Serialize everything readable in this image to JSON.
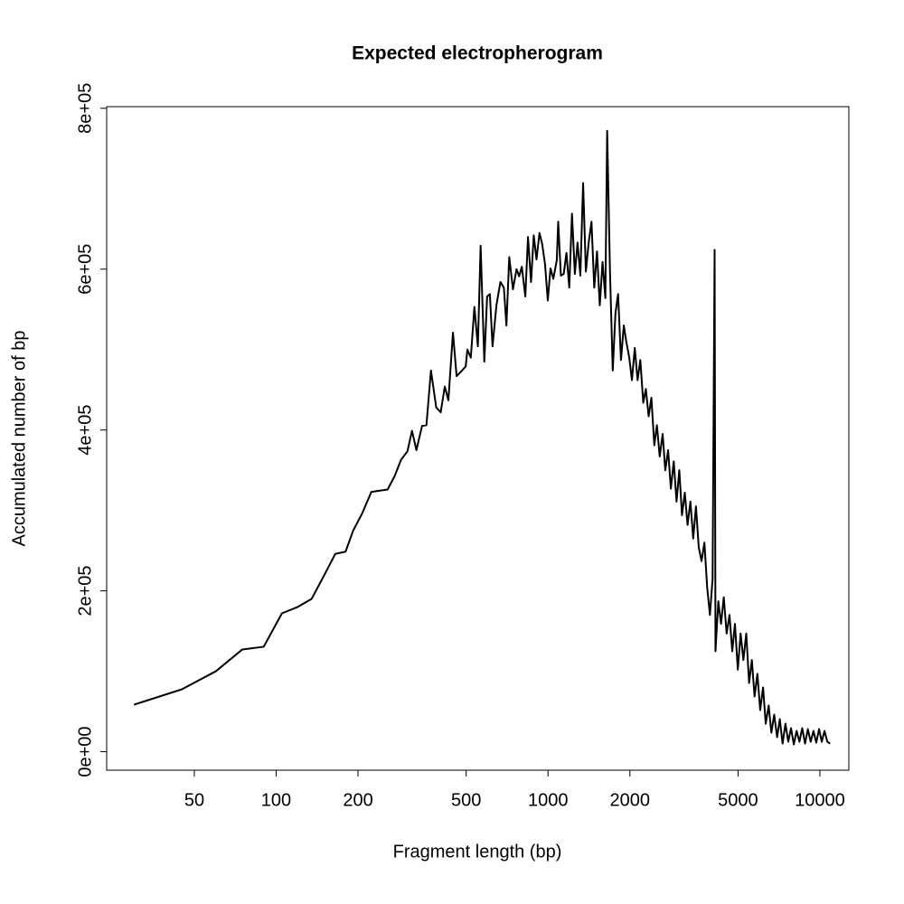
{
  "chart_data": {
    "type": "line",
    "title": "Expected electropherogram",
    "x_label": "Fragment length (bp)",
    "y_label": "Accumulated number of bp",
    "log_x": true,
    "grid": false,
    "xlim": [
      23.8,
      12780
    ],
    "ylim": [
      -23000,
      802000
    ],
    "xticks": [
      50,
      100,
      200,
      500,
      1000,
      2000,
      5000,
      10000
    ],
    "yticks": [
      {
        "value": 0,
        "label": "0e+00"
      },
      {
        "value": 200000,
        "label": "2e+05"
      },
      {
        "value": 400000,
        "label": "4e+05"
      },
      {
        "value": 600000,
        "label": "6e+05"
      },
      {
        "value": 800000,
        "label": "8e+05"
      }
    ],
    "series": [
      {
        "color": "#000000",
        "x": [
          30,
          45,
          60,
          75,
          90,
          105,
          120,
          135,
          150,
          165,
          180,
          192,
          207,
          224,
          257,
          273,
          288,
          304,
          316,
          328,
          344,
          357,
          371,
          388,
          403,
          417,
          430,
          447,
          461,
          483,
          498,
          505,
          520,
          536,
          552,
          565,
          583,
          597,
          611,
          625,
          646,
          668,
          688,
          703,
          720,
          743,
          766,
          783,
          801,
          825,
          844,
          866,
          886,
          907,
          930,
          952,
          975,
          998,
          1021,
          1046,
          1077,
          1090,
          1115,
          1142,
          1169,
          1197,
          1225,
          1255,
          1284,
          1315,
          1346,
          1378,
          1411,
          1445,
          1479,
          1514,
          1550,
          1587,
          1625,
          1650,
          1690,
          1730,
          1770,
          1810,
          1855,
          1900,
          1940,
          1990,
          2035,
          2085,
          2135,
          2185,
          2240,
          2290,
          2345,
          2400,
          2460,
          2515,
          2575,
          2640,
          2700,
          2765,
          2830,
          2900,
          2970,
          3040,
          3110,
          3185,
          3260,
          3340,
          3420,
          3500,
          3585,
          3670,
          3760,
          3850,
          3940,
          4030,
          4100,
          4130,
          4230,
          4330,
          4430,
          4540,
          4650,
          4760,
          4870,
          4990,
          5110,
          5230,
          5360,
          5490,
          5620,
          5750,
          5890,
          6030,
          6180,
          6320,
          6480,
          6630,
          6790,
          6960,
          7120,
          7290,
          7470,
          7650,
          7830,
          8020,
          8210,
          8410,
          8610,
          8820,
          9030,
          9250,
          9470,
          9700,
          9930,
          10160,
          10400,
          10650,
          10900
        ],
        "values": [
          58500,
          77600,
          100000,
          127000,
          130500,
          172000,
          180000,
          190000,
          219000,
          246000,
          248700,
          275000,
          296000,
          323000,
          326000,
          343000,
          363000,
          373500,
          399000,
          375000,
          405000,
          406000,
          474000,
          428000,
          422000,
          454000,
          437000,
          521000,
          467000,
          474000,
          479000,
          500000,
          490000,
          553000,
          504000,
          629000,
          485000,
          566000,
          569000,
          504000,
          555000,
          584000,
          577000,
          530000,
          615000,
          575000,
          600000,
          591000,
          603000,
          566000,
          640000,
          584000,
          642000,
          612000,
          645000,
          631000,
          606000,
          561000,
          601000,
          588000,
          611000,
          659000,
          592000,
          594000,
          620000,
          577000,
          669000,
          594000,
          633000,
          592000,
          707000,
          597000,
          633000,
          659000,
          577000,
          622000,
          555000,
          609000,
          564000,
          772000,
          597000,
          474000,
          545000,
          569000,
          487000,
          530000,
          510000,
          490000,
          462000,
          502000,
          462000,
          487000,
          434000,
          451000,
          417000,
          440000,
          381000,
          406000,
          367000,
          395000,
          350000,
          375000,
          327000,
          361000,
          311000,
          350000,
          294000,
          322000,
          282000,
          311000,
          265000,
          305000,
          254000,
          237000,
          260000,
          204000,
          170000,
          215000,
          624000,
          125000,
          187000,
          159000,
          192000,
          147000,
          170000,
          125000,
          159000,
          102000,
          147000,
          114000,
          147000,
          85500,
          114000,
          68600,
          96800,
          51800,
          79900,
          34900,
          57400,
          23600,
          46100,
          18000,
          40500,
          10100,
          34900,
          12400,
          29300,
          9000,
          25900,
          12400,
          29300,
          10100,
          28100,
          12400,
          25900,
          11300,
          28100,
          12400,
          25900,
          12400,
          10100
        ]
      }
    ]
  }
}
